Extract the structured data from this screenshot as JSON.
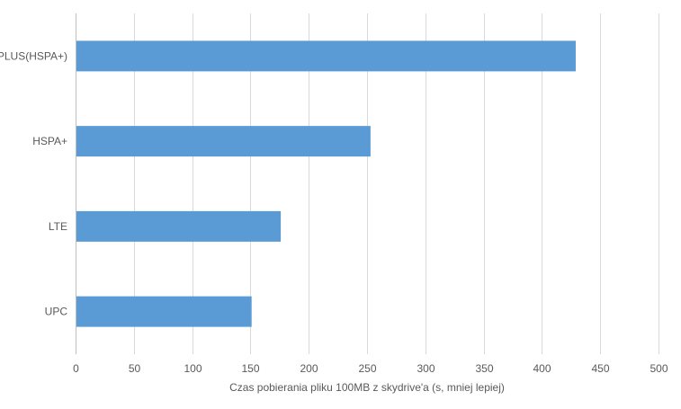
{
  "chart_data": {
    "type": "bar",
    "orientation": "horizontal",
    "title": "",
    "xlabel": "Czas pobierania pliku 100MB z skydrive'a (s, mniej lepiej)",
    "ylabel": "",
    "categories": [
      "PLUS(HSPA+)",
      "HSPA+",
      "LTE",
      "UPC"
    ],
    "values": [
      429,
      253,
      176,
      151
    ],
    "xlim": [
      0,
      500
    ],
    "xticks": [
      "0",
      "50",
      "100",
      "150",
      "200",
      "250",
      "300",
      "350",
      "400",
      "450",
      "500"
    ],
    "grid": true,
    "legend": "none",
    "bar_color": "#5B9BD5",
    "grid_color": "#D9D9D9",
    "axis_color": "#BFBFBF"
  }
}
